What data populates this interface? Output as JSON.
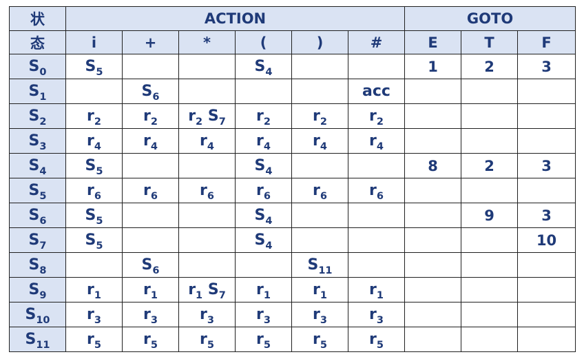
{
  "header": {
    "state_label_line1": "状",
    "state_label_line2": "态",
    "action_label": "ACTION",
    "goto_label": "GOTO",
    "action_cols": [
      "i",
      "+",
      "*",
      "(",
      ")",
      "#"
    ],
    "goto_cols": [
      "E",
      "T",
      "F"
    ]
  },
  "rows": [
    {
      "state": "S",
      "state_sub": "0",
      "action": [
        {
          "t": "S",
          "s": "5"
        },
        null,
        null,
        {
          "t": "S",
          "s": "4"
        },
        null,
        null
      ],
      "goto": [
        "1",
        "2",
        "3"
      ]
    },
    {
      "state": "S",
      "state_sub": "1",
      "action": [
        null,
        {
          "t": "S",
          "s": "6",
          "c": "red"
        },
        null,
        null,
        null,
        {
          "t": "acc",
          "c": "red"
        }
      ],
      "goto": [
        "",
        "",
        ""
      ]
    },
    {
      "state": "S",
      "state_sub": "2",
      "action": [
        {
          "t": "r",
          "s": "2"
        },
        {
          "t": "r",
          "s": "2"
        },
        {
          "t": "r",
          "s": "2",
          "t2": "S",
          "s2": "7",
          "c": "pink"
        },
        {
          "t": "r",
          "s": "2"
        },
        {
          "t": "r",
          "s": "2"
        },
        {
          "t": "r",
          "s": "2"
        }
      ],
      "goto": [
        "",
        "",
        ""
      ]
    },
    {
      "state": "S",
      "state_sub": "3",
      "action": [
        {
          "t": "r",
          "s": "4"
        },
        {
          "t": "r",
          "s": "4"
        },
        {
          "t": "r",
          "s": "4"
        },
        {
          "t": "r",
          "s": "4"
        },
        {
          "t": "r",
          "s": "4"
        },
        {
          "t": "r",
          "s": "4"
        }
      ],
      "goto": [
        "",
        "",
        ""
      ]
    },
    {
      "state": "S",
      "state_sub": "4",
      "action": [
        {
          "t": "S",
          "s": "5"
        },
        null,
        null,
        {
          "t": "S",
          "s": "4"
        },
        null,
        null
      ],
      "goto": [
        "8",
        "2",
        "3"
      ]
    },
    {
      "state": "S",
      "state_sub": "5",
      "action": [
        {
          "t": "r",
          "s": "6"
        },
        {
          "t": "r",
          "s": "6"
        },
        {
          "t": "r",
          "s": "6"
        },
        {
          "t": "r",
          "s": "6"
        },
        {
          "t": "r",
          "s": "6"
        },
        {
          "t": "r",
          "s": "6"
        }
      ],
      "goto": [
        "",
        "",
        ""
      ]
    },
    {
      "state": "S",
      "state_sub": "6",
      "action": [
        {
          "t": "S",
          "s": "5"
        },
        null,
        null,
        {
          "t": "S",
          "s": "4"
        },
        null,
        null
      ],
      "goto": [
        "",
        "9",
        "3"
      ]
    },
    {
      "state": "S",
      "state_sub": "7",
      "action": [
        {
          "t": "S",
          "s": "5"
        },
        null,
        null,
        {
          "t": "S",
          "s": "4"
        },
        null,
        null
      ],
      "goto": [
        "",
        "",
        "10"
      ]
    },
    {
      "state": "S",
      "state_sub": "8",
      "action": [
        null,
        {
          "t": "S",
          "s": "6"
        },
        null,
        null,
        {
          "t": "S",
          "s": "11"
        },
        null
      ],
      "goto": [
        "",
        "",
        ""
      ]
    },
    {
      "state": "S",
      "state_sub": "9",
      "action": [
        {
          "t": "r",
          "s": "1"
        },
        {
          "t": "r",
          "s": "1"
        },
        {
          "t": "r",
          "s": "1",
          "t2": "S",
          "s2": "7",
          "c": "pink"
        },
        {
          "t": "r",
          "s": "1"
        },
        {
          "t": "r",
          "s": "1"
        },
        {
          "t": "r",
          "s": "1"
        }
      ],
      "goto": [
        "",
        "",
        ""
      ]
    },
    {
      "state": "S",
      "state_sub": "10",
      "action": [
        {
          "t": "r",
          "s": "3"
        },
        {
          "t": "r",
          "s": "3"
        },
        {
          "t": "r",
          "s": "3"
        },
        {
          "t": "r",
          "s": "3"
        },
        {
          "t": "r",
          "s": "3"
        },
        {
          "t": "r",
          "s": "3"
        }
      ],
      "goto": [
        "",
        "",
        ""
      ]
    },
    {
      "state": "S",
      "state_sub": "11",
      "action": [
        {
          "t": "r",
          "s": "5"
        },
        {
          "t": "r",
          "s": "5"
        },
        {
          "t": "r",
          "s": "5"
        },
        {
          "t": "r",
          "s": "5"
        },
        {
          "t": "r",
          "s": "5"
        },
        {
          "t": "r",
          "s": "5"
        }
      ],
      "goto": [
        "",
        "",
        ""
      ]
    }
  ],
  "colors": {
    "header_bg": "#dae3f3",
    "text_navy": "#1f3a78",
    "highlight_red": "#e81f1f",
    "conflict_pink": "#ef5a5a",
    "border": "#1f1f1f"
  }
}
